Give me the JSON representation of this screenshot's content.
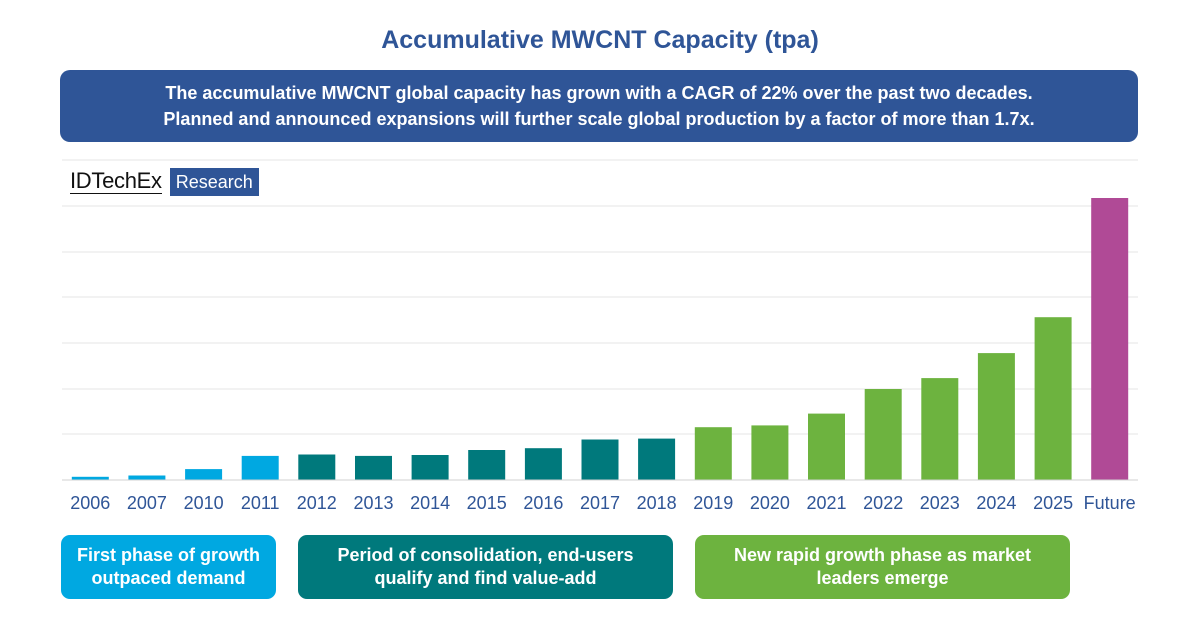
{
  "title": "Accumulative MWCNT Capacity (tpa)",
  "banner": {
    "line1": "The accumulative MWCNT global capacity has grown with a CAGR of 22% over the past two decades.",
    "line2": "Planned and announced expansions will further scale global production by a factor of more than 1.7x."
  },
  "logo": {
    "main": "IDTechEx",
    "sub": "Research"
  },
  "phases": [
    {
      "line1": "First phase of growth",
      "line2": "outpaced demand"
    },
    {
      "line1": "Period of consolidation, end-users",
      "line2": "qualify and find value-add"
    },
    {
      "line1": "New rapid growth phase as market",
      "line2": "leaders emerge"
    }
  ],
  "colors": {
    "title": "#2F5597",
    "banner": "#2F5597",
    "phase1": "#00A8E1",
    "phase2": "#00797C",
    "phase3": "#6DB33F",
    "future": "#B04A96",
    "axis_label": "#2F5597",
    "grid": "#E5E5E5"
  },
  "chart_data": {
    "type": "bar",
    "title": "Accumulative MWCNT Capacity (tpa)",
    "xlabel": "",
    "ylabel": "",
    "grid": true,
    "ylim": [
      0,
      62
    ],
    "categories": [
      "2006",
      "2007",
      "2010",
      "2011",
      "2012",
      "2013",
      "2014",
      "2015",
      "2016",
      "2017",
      "2018",
      "2019",
      "2020",
      "2021",
      "2022",
      "2023",
      "2024",
      "2025",
      "Future"
    ],
    "values": [
      0.7,
      1.0,
      2.4,
      5.3,
      5.6,
      5.3,
      5.5,
      6.6,
      7.0,
      8.9,
      9.1,
      11.6,
      12.0,
      14.6,
      20.0,
      22.4,
      27.9,
      35.8,
      62.0
    ],
    "phase_index": [
      0,
      0,
      0,
      0,
      1,
      1,
      1,
      1,
      1,
      1,
      1,
      2,
      2,
      2,
      2,
      2,
      2,
      2,
      3
    ]
  }
}
